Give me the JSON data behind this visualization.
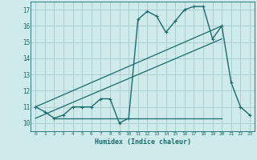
{
  "xlabel": "Humidex (Indice chaleur)",
  "bg_color": "#ceeaea",
  "grid_color": "#aacece",
  "line_color": "#1a6b6b",
  "xlim": [
    -0.5,
    23.5
  ],
  "ylim": [
    9.5,
    17.5
  ],
  "yticks": [
    10,
    11,
    12,
    13,
    14,
    15,
    16,
    17
  ],
  "xticks": [
    0,
    1,
    2,
    3,
    4,
    5,
    6,
    7,
    8,
    9,
    10,
    11,
    12,
    13,
    14,
    15,
    16,
    17,
    18,
    19,
    20,
    21,
    22,
    23
  ],
  "curve1_x": [
    0,
    1,
    2,
    3,
    4,
    5,
    6,
    7,
    8,
    9,
    10,
    11,
    12,
    13,
    14,
    15,
    16,
    17,
    18,
    19,
    20,
    21,
    22,
    23
  ],
  "curve1_y": [
    11.0,
    10.7,
    10.3,
    10.5,
    11.0,
    11.0,
    11.0,
    11.5,
    11.5,
    10.0,
    10.3,
    16.4,
    16.9,
    16.6,
    15.6,
    16.3,
    17.0,
    17.2,
    17.2,
    15.2,
    16.0,
    12.5,
    11.0,
    10.5
  ],
  "line1_x": [
    0,
    20
  ],
  "line1_y": [
    11.0,
    16.0
  ],
  "line2_x": [
    0,
    20
  ],
  "line2_y": [
    10.3,
    15.2
  ],
  "hline_y": 10.3,
  "hline_x_start": 2,
  "hline_x_end": 20
}
